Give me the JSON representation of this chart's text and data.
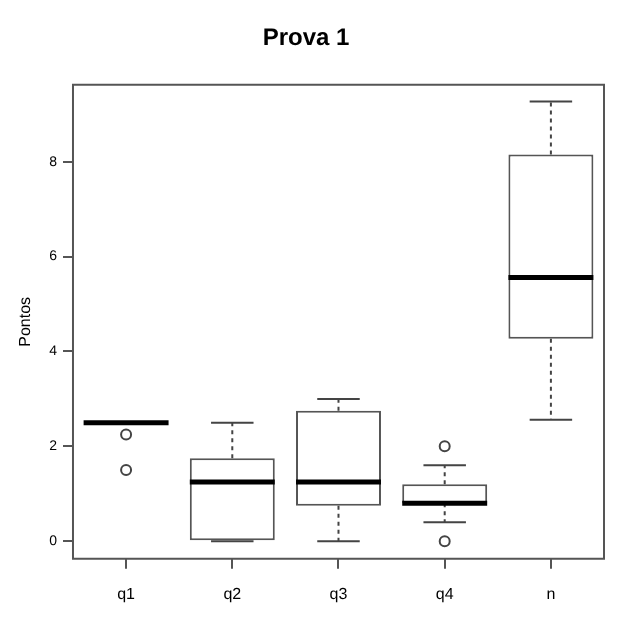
{
  "chart_data": {
    "type": "box",
    "title": "Prova 1",
    "ylabel": "Pontos",
    "categories": [
      "q1",
      "q2",
      "q3",
      "q4",
      "n"
    ],
    "boxes": [
      {
        "low": 2.5,
        "q1": 2.5,
        "median": 2.5,
        "q3": 2.5,
        "high": 2.5,
        "outliers": [
          2.25,
          1.5
        ]
      },
      {
        "low": 0,
        "q1": 0,
        "median": 1.25,
        "q3": 1.75,
        "high": 2.5
      },
      {
        "low": 0,
        "q1": 0.75,
        "median": 1.25,
        "q3": 2.75,
        "high": 3
      },
      {
        "low": 0.4,
        "q1": 0.8,
        "median": 0.8,
        "q3": 1.2,
        "high": 1.6,
        "outliers": [
          2,
          0
        ]
      },
      {
        "low": 2.56,
        "q1": 4.27,
        "median": 5.56,
        "q3": 8.15,
        "high": 9.27
      }
    ],
    "ylim": [
      -0.37,
      9.62
    ],
    "yticks": [
      0,
      2,
      4,
      6,
      8
    ],
    "grid": false,
    "legend": false
  }
}
